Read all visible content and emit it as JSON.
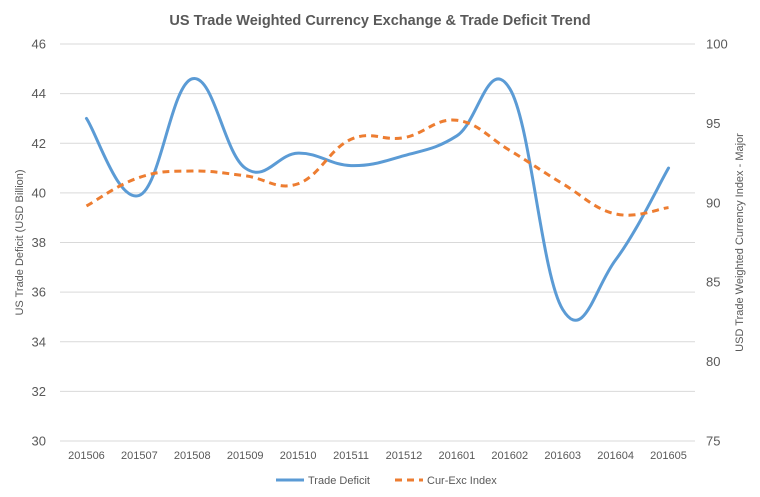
{
  "chart_data": {
    "type": "line",
    "title": "US Trade Weighted Currency Exchange & Trade Deficit Trend",
    "categories": [
      "201506",
      "201507",
      "201508",
      "201509",
      "201510",
      "201511",
      "201512",
      "201601",
      "201602",
      "201603",
      "201604",
      "201605"
    ],
    "ylabel": "US Trade Deficit (USD Billion)",
    "ylabel_right": "USD Trade Weighted Currency Index - Major",
    "ylim": [
      30,
      46
    ],
    "yticks": [
      "30",
      "32",
      "34",
      "36",
      "38",
      "40",
      "42",
      "44",
      "46"
    ],
    "ylim_right": [
      75,
      100
    ],
    "yticks_right": [
      "75",
      "80",
      "85",
      "90",
      "95",
      "100"
    ],
    "grid": true,
    "legend_position": "bottom",
    "series": [
      {
        "name": "Trade Deficit",
        "axis": "left",
        "style": "solid",
        "color": "#5b9bd5",
        "values": [
          43.0,
          39.9,
          44.6,
          41.0,
          41.6,
          41.1,
          41.5,
          42.3,
          44.2,
          35.3,
          37.3,
          41.0
        ]
      },
      {
        "name": "Cur-Exc Index",
        "axis": "right",
        "style": "dashed",
        "color": "#ed7d31",
        "values": [
          89.8,
          91.6,
          92.0,
          91.7,
          91.2,
          94.0,
          94.1,
          95.2,
          93.3,
          91.2,
          89.3,
          89.7
        ]
      }
    ]
  }
}
